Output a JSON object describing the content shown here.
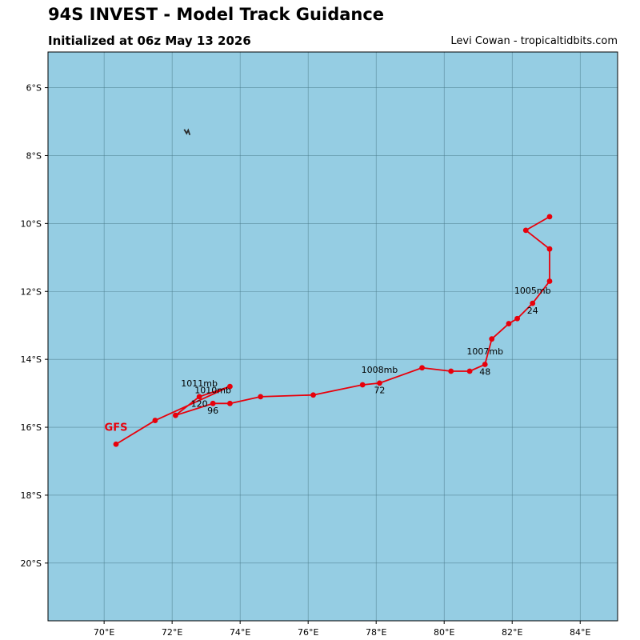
{
  "header": {
    "title": "94S INVEST - Model Track Guidance",
    "subtitle": "Initialized at 06z May 13 2026",
    "credit": "Levi Cowan - tropicaltidbits.com"
  },
  "colors": {
    "ocean": "#95cde3",
    "track": "#e8000b",
    "grid": "#4a7a8a"
  },
  "chart_data": {
    "type": "line",
    "xlim": [
      68.35,
      85.1
    ],
    "ylim": [
      -21.7,
      -4.95
    ],
    "x_unit": "degrees longitude (E)",
    "y_unit": "degrees latitude (negative = S)",
    "grid": true,
    "xticks": [
      70,
      72,
      74,
      76,
      78,
      80,
      82,
      84
    ],
    "xtick_labels": [
      "70°E",
      "72°E",
      "74°E",
      "76°E",
      "78°E",
      "80°E",
      "82°E",
      "84°E"
    ],
    "yticks": [
      -6,
      -8,
      -10,
      -12,
      -14,
      -16,
      -18,
      -20
    ],
    "ytick_labels": [
      "6°S",
      "8°S",
      "10°S",
      "12°S",
      "14°S",
      "16°S",
      "18°S",
      "20°S"
    ],
    "series": [
      {
        "name": "GFS",
        "x": [
          83.1,
          82.4,
          83.1,
          83.1,
          82.6,
          82.15,
          81.9,
          81.4,
          81.2,
          80.75,
          80.2,
          79.35,
          78.1,
          77.6,
          76.15,
          74.6,
          73.7,
          73.2,
          72.1,
          72.8,
          73.7,
          71.5,
          70.35
        ],
        "y": [
          -9.8,
          -10.2,
          -10.75,
          -11.7,
          -12.35,
          -12.8,
          -12.95,
          -13.4,
          -14.15,
          -14.35,
          -14.35,
          -14.25,
          -14.7,
          -14.75,
          -15.05,
          -15.1,
          -15.3,
          -15.3,
          -15.65,
          -15.1,
          -14.8,
          -15.8,
          -16.5
        ]
      }
    ],
    "annotations": [
      {
        "text": "1005mb",
        "x": 82.6,
        "y": -12.07
      },
      {
        "text": "24",
        "x": 82.6,
        "y": -12.65
      },
      {
        "text": "1007mb",
        "x": 81.2,
        "y": -13.85
      },
      {
        "text": "48",
        "x": 81.2,
        "y": -14.45
      },
      {
        "text": "1008mb",
        "x": 78.1,
        "y": -14.4
      },
      {
        "text": "72",
        "x": 78.1,
        "y": -15.0
      },
      {
        "text": "1010mb",
        "x": 73.2,
        "y": -15.0
      },
      {
        "text": "96",
        "x": 73.2,
        "y": -15.6
      },
      {
        "text": "1011mb",
        "x": 72.8,
        "y": -14.8
      },
      {
        "text": "120",
        "x": 72.8,
        "y": -15.4
      }
    ],
    "series_label": {
      "text": "GFS",
      "x": 70.35,
      "y": -16.1
    },
    "land_feature": {
      "x": 72.45,
      "y": -7.3
    }
  }
}
